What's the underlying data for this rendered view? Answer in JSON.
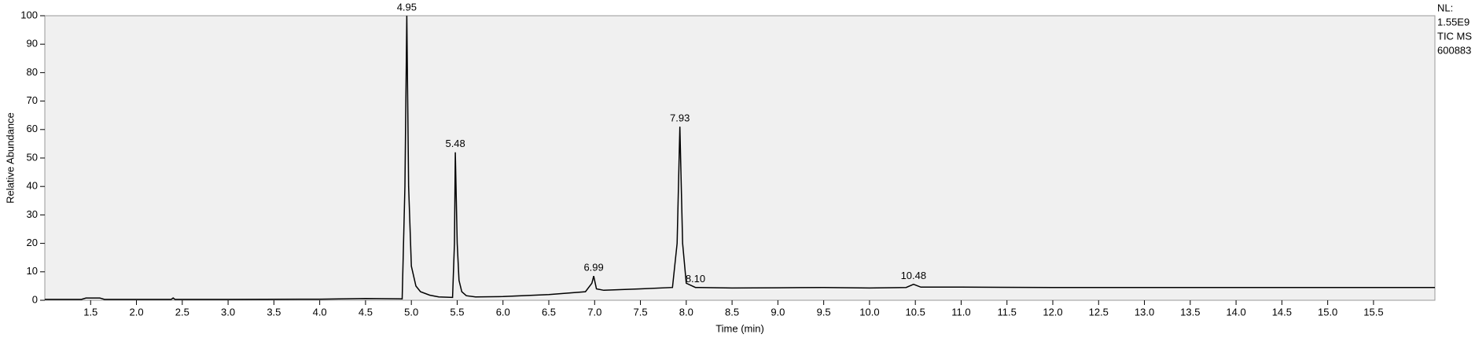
{
  "chart_data": {
    "type": "line",
    "x_label": "Time (min)",
    "y_label": "Relative Abundance",
    "info": [
      "NL:",
      "1.55E9",
      "TIC MS",
      "600883"
    ],
    "color": "#000000",
    "background": "#f0f0f0",
    "xlim": [
      1.0,
      16.17
    ],
    "ylim": [
      0,
      100
    ],
    "xticks": [
      1.5,
      {
        "value": 2,
        "label": "2.0"
      },
      2.5,
      {
        "value": 3,
        "label": "3.0"
      },
      3.5,
      {
        "value": 4,
        "label": "4.0"
      },
      4.5,
      {
        "value": 5,
        "label": "5.0"
      },
      5.5,
      {
        "value": 6,
        "label": "6.0"
      },
      6.5,
      {
        "value": 7,
        "label": "7.0"
      },
      7.5,
      {
        "value": 8,
        "label": "8.0"
      },
      8.5,
      {
        "value": 9,
        "label": "9.0"
      },
      9.5,
      {
        "value": 10,
        "label": "10.0"
      },
      10.5,
      {
        "value": 11,
        "label": "11.0"
      },
      11.5,
      {
        "value": 12,
        "label": "12.0"
      },
      12.5,
      {
        "value": 13,
        "label": "13.0"
      },
      13.5,
      {
        "value": 14,
        "label": "14.0"
      },
      14.5,
      {
        "value": 15,
        "label": "15.0"
      },
      15.5
    ],
    "yticks": [
      0,
      10,
      20,
      30,
      40,
      50,
      60,
      70,
      80,
      90,
      100
    ],
    "x": [
      1.0,
      1.4,
      1.45,
      1.6,
      1.65,
      2.38,
      2.4,
      2.42,
      3.0,
      4.0,
      4.5,
      4.9,
      4.93,
      4.95,
      4.97,
      5.0,
      5.05,
      5.1,
      5.2,
      5.3,
      5.45,
      5.47,
      5.48,
      5.5,
      5.52,
      5.55,
      5.6,
      5.7,
      6.0,
      6.5,
      6.9,
      6.97,
      6.99,
      7.02,
      7.1,
      7.5,
      7.85,
      7.9,
      7.93,
      7.96,
      8.0,
      8.1,
      8.5,
      9.0,
      9.5,
      10.0,
      10.4,
      10.48,
      10.56,
      11.0,
      12.0,
      13.0,
      14.0,
      15.0,
      16.17
    ],
    "values": [
      0.3,
      0.3,
      0.8,
      0.8,
      0.3,
      0.3,
      0.8,
      0.3,
      0.3,
      0.4,
      0.6,
      0.5,
      40,
      100,
      40,
      12,
      5,
      3,
      1.8,
      1.2,
      1,
      20,
      52,
      20,
      7,
      3,
      1.6,
      1.2,
      1.3,
      2,
      3,
      6,
      8.5,
      4,
      3.5,
      4,
      4.5,
      20,
      61,
      20,
      6,
      4.5,
      4.3,
      4.4,
      4.5,
      4.3,
      4.5,
      5.6,
      4.6,
      4.6,
      4.5,
      4.5,
      4.5,
      4.5,
      4.5
    ],
    "peaks": [
      {
        "label": "4.95",
        "x": 4.95,
        "y": 100
      },
      {
        "label": "5.48",
        "x": 5.48,
        "y": 52
      },
      {
        "label": "6.99",
        "x": 6.99,
        "y": 8.5
      },
      {
        "label": "7.93",
        "x": 7.93,
        "y": 61
      },
      {
        "label": "8.10",
        "x": 8.1,
        "y": 4.5
      },
      {
        "label": "10.48",
        "x": 10.48,
        "y": 5.6
      }
    ]
  }
}
